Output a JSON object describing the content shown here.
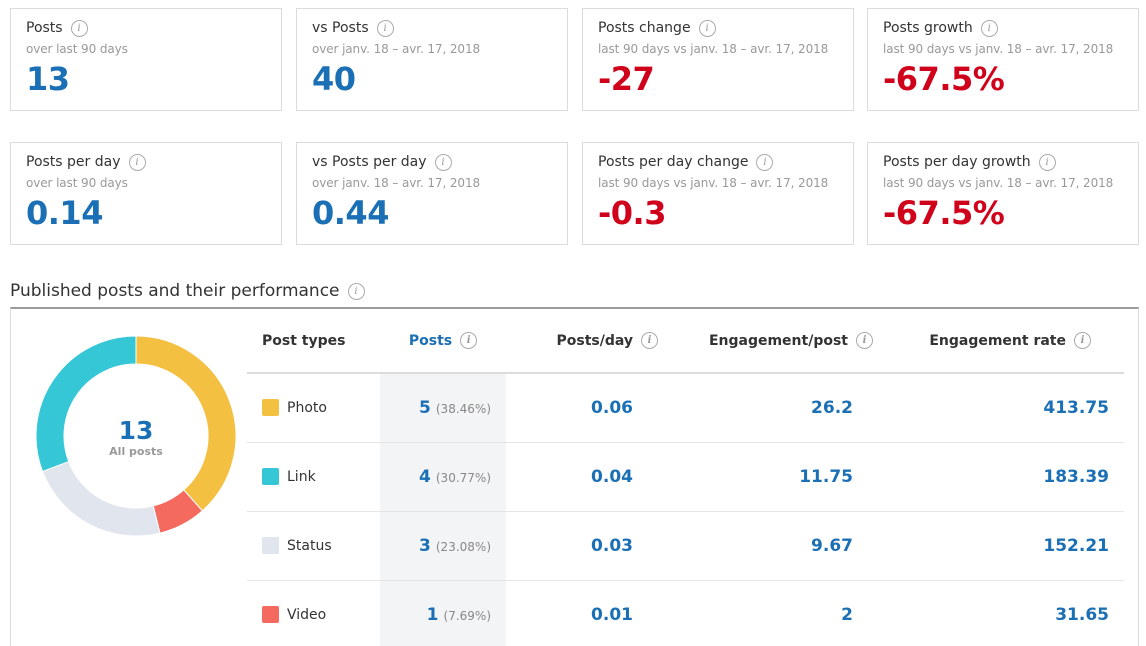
{
  "summary_cards": [
    {
      "title": "Posts",
      "subtitle": "over last 90 days",
      "value": "13",
      "color": "blue"
    },
    {
      "title": "vs Posts",
      "subtitle": "over janv. 18 – avr. 17, 2018",
      "value": "40",
      "color": "blue"
    },
    {
      "title": "Posts change",
      "subtitle": "last 90 days vs janv. 18 – avr. 17, 2018",
      "value": "-27",
      "color": "red"
    },
    {
      "title": "Posts growth",
      "subtitle": "last 90 days vs janv. 18 – avr. 17, 2018",
      "value": "-67.5%",
      "color": "red"
    },
    {
      "title": "Posts per day",
      "subtitle": "over last 90 days",
      "value": "0.14",
      "color": "blue"
    },
    {
      "title": "vs Posts per day",
      "subtitle": "over janv. 18 – avr. 17, 2018",
      "value": "0.44",
      "color": "blue"
    },
    {
      "title": "Posts per day change",
      "subtitle": "last 90 days vs janv. 18 – avr. 17, 2018",
      "value": "-0.3",
      "color": "red"
    },
    {
      "title": "Posts per day growth",
      "subtitle": "last 90 days vs janv. 18 – avr. 17, 2018",
      "value": "-67.5%",
      "color": "red"
    }
  ],
  "section": {
    "title": "Published posts and their performance"
  },
  "donut": {
    "total": "13",
    "label": "All posts"
  },
  "table": {
    "headers": {
      "type": "Post types",
      "posts": "Posts",
      "posts_per_day": "Posts/day",
      "engagement_per_post": "Engagement/post",
      "engagement_rate": "Engagement rate"
    },
    "rows": [
      {
        "type": "Photo",
        "color": "#f3c042",
        "posts": "5",
        "pct": "(38.46%)",
        "posts_per_day": "0.06",
        "engagement_per_post": "26.2",
        "engagement_rate": "413.75"
      },
      {
        "type": "Link",
        "color": "#35c7d5",
        "posts": "4",
        "pct": "(30.77%)",
        "posts_per_day": "0.04",
        "engagement_per_post": "11.75",
        "engagement_rate": "183.39"
      },
      {
        "type": "Status",
        "color": "#e1e5ee",
        "posts": "3",
        "pct": "(23.08%)",
        "posts_per_day": "0.03",
        "engagement_per_post": "9.67",
        "engagement_rate": "152.21"
      },
      {
        "type": "Video",
        "color": "#f46a5e",
        "posts": "1",
        "pct": "(7.69%)",
        "posts_per_day": "0.01",
        "engagement_per_post": "2",
        "engagement_rate": "31.65"
      }
    ]
  },
  "chart_data": {
    "type": "pie",
    "categories": [
      "Photo",
      "Video",
      "Status",
      "Link"
    ],
    "values": [
      5,
      1,
      3,
      4
    ],
    "colors": [
      "#f3c042",
      "#f46a5e",
      "#e1e5ee",
      "#35c7d5"
    ],
    "title": "",
    "center_value": "13",
    "center_label": "All posts"
  }
}
